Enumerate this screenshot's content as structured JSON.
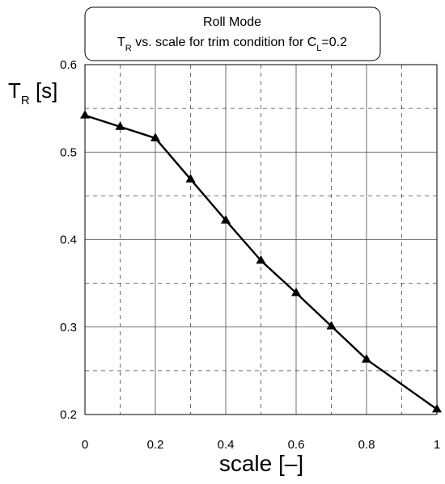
{
  "chart_data": {
    "type": "line",
    "title": {
      "line1": "Roll Mode",
      "line2_parts": [
        {
          "text": "T",
          "sub": false
        },
        {
          "text": "R",
          "sub": true
        },
        {
          "text": " vs. scale for trim condition for C",
          "sub": false
        },
        {
          "text": "L",
          "sub": true
        },
        {
          "text": "=0.2",
          "sub": false
        }
      ]
    },
    "xlabel": "scale [–]",
    "ylabel": {
      "main": "T",
      "sub": "R",
      "rest": " [s]"
    },
    "xlim": [
      0,
      1
    ],
    "ylim": [
      0.2,
      0.6
    ],
    "x_ticks": [
      0,
      0.2,
      0.4,
      0.6,
      0.8,
      1
    ],
    "x_tick_labels": [
      "0",
      "0.2",
      "0.4",
      "0.6",
      "0.8",
      "1"
    ],
    "x_minor_ticks": [
      0.1,
      0.3,
      0.5,
      0.7,
      0.9
    ],
    "y_ticks": [
      0.2,
      0.3,
      0.4,
      0.5,
      0.6
    ],
    "y_tick_labels": [
      "0.2",
      "0.3",
      "0.4",
      "0.5",
      "0.6"
    ],
    "y_minor_ticks": [
      0.25,
      0.35,
      0.45,
      0.55
    ],
    "grid": true,
    "marker": "triangle",
    "line_color": "#000000",
    "series": [
      {
        "x": [
          0,
          0.1,
          0.2,
          0.3,
          0.4,
          0.5,
          0.6,
          0.7,
          0.8,
          1.0
        ],
        "y": [
          0.542,
          0.529,
          0.516,
          0.469,
          0.422,
          0.376,
          0.339,
          0.301,
          0.263,
          0.206
        ]
      }
    ]
  }
}
